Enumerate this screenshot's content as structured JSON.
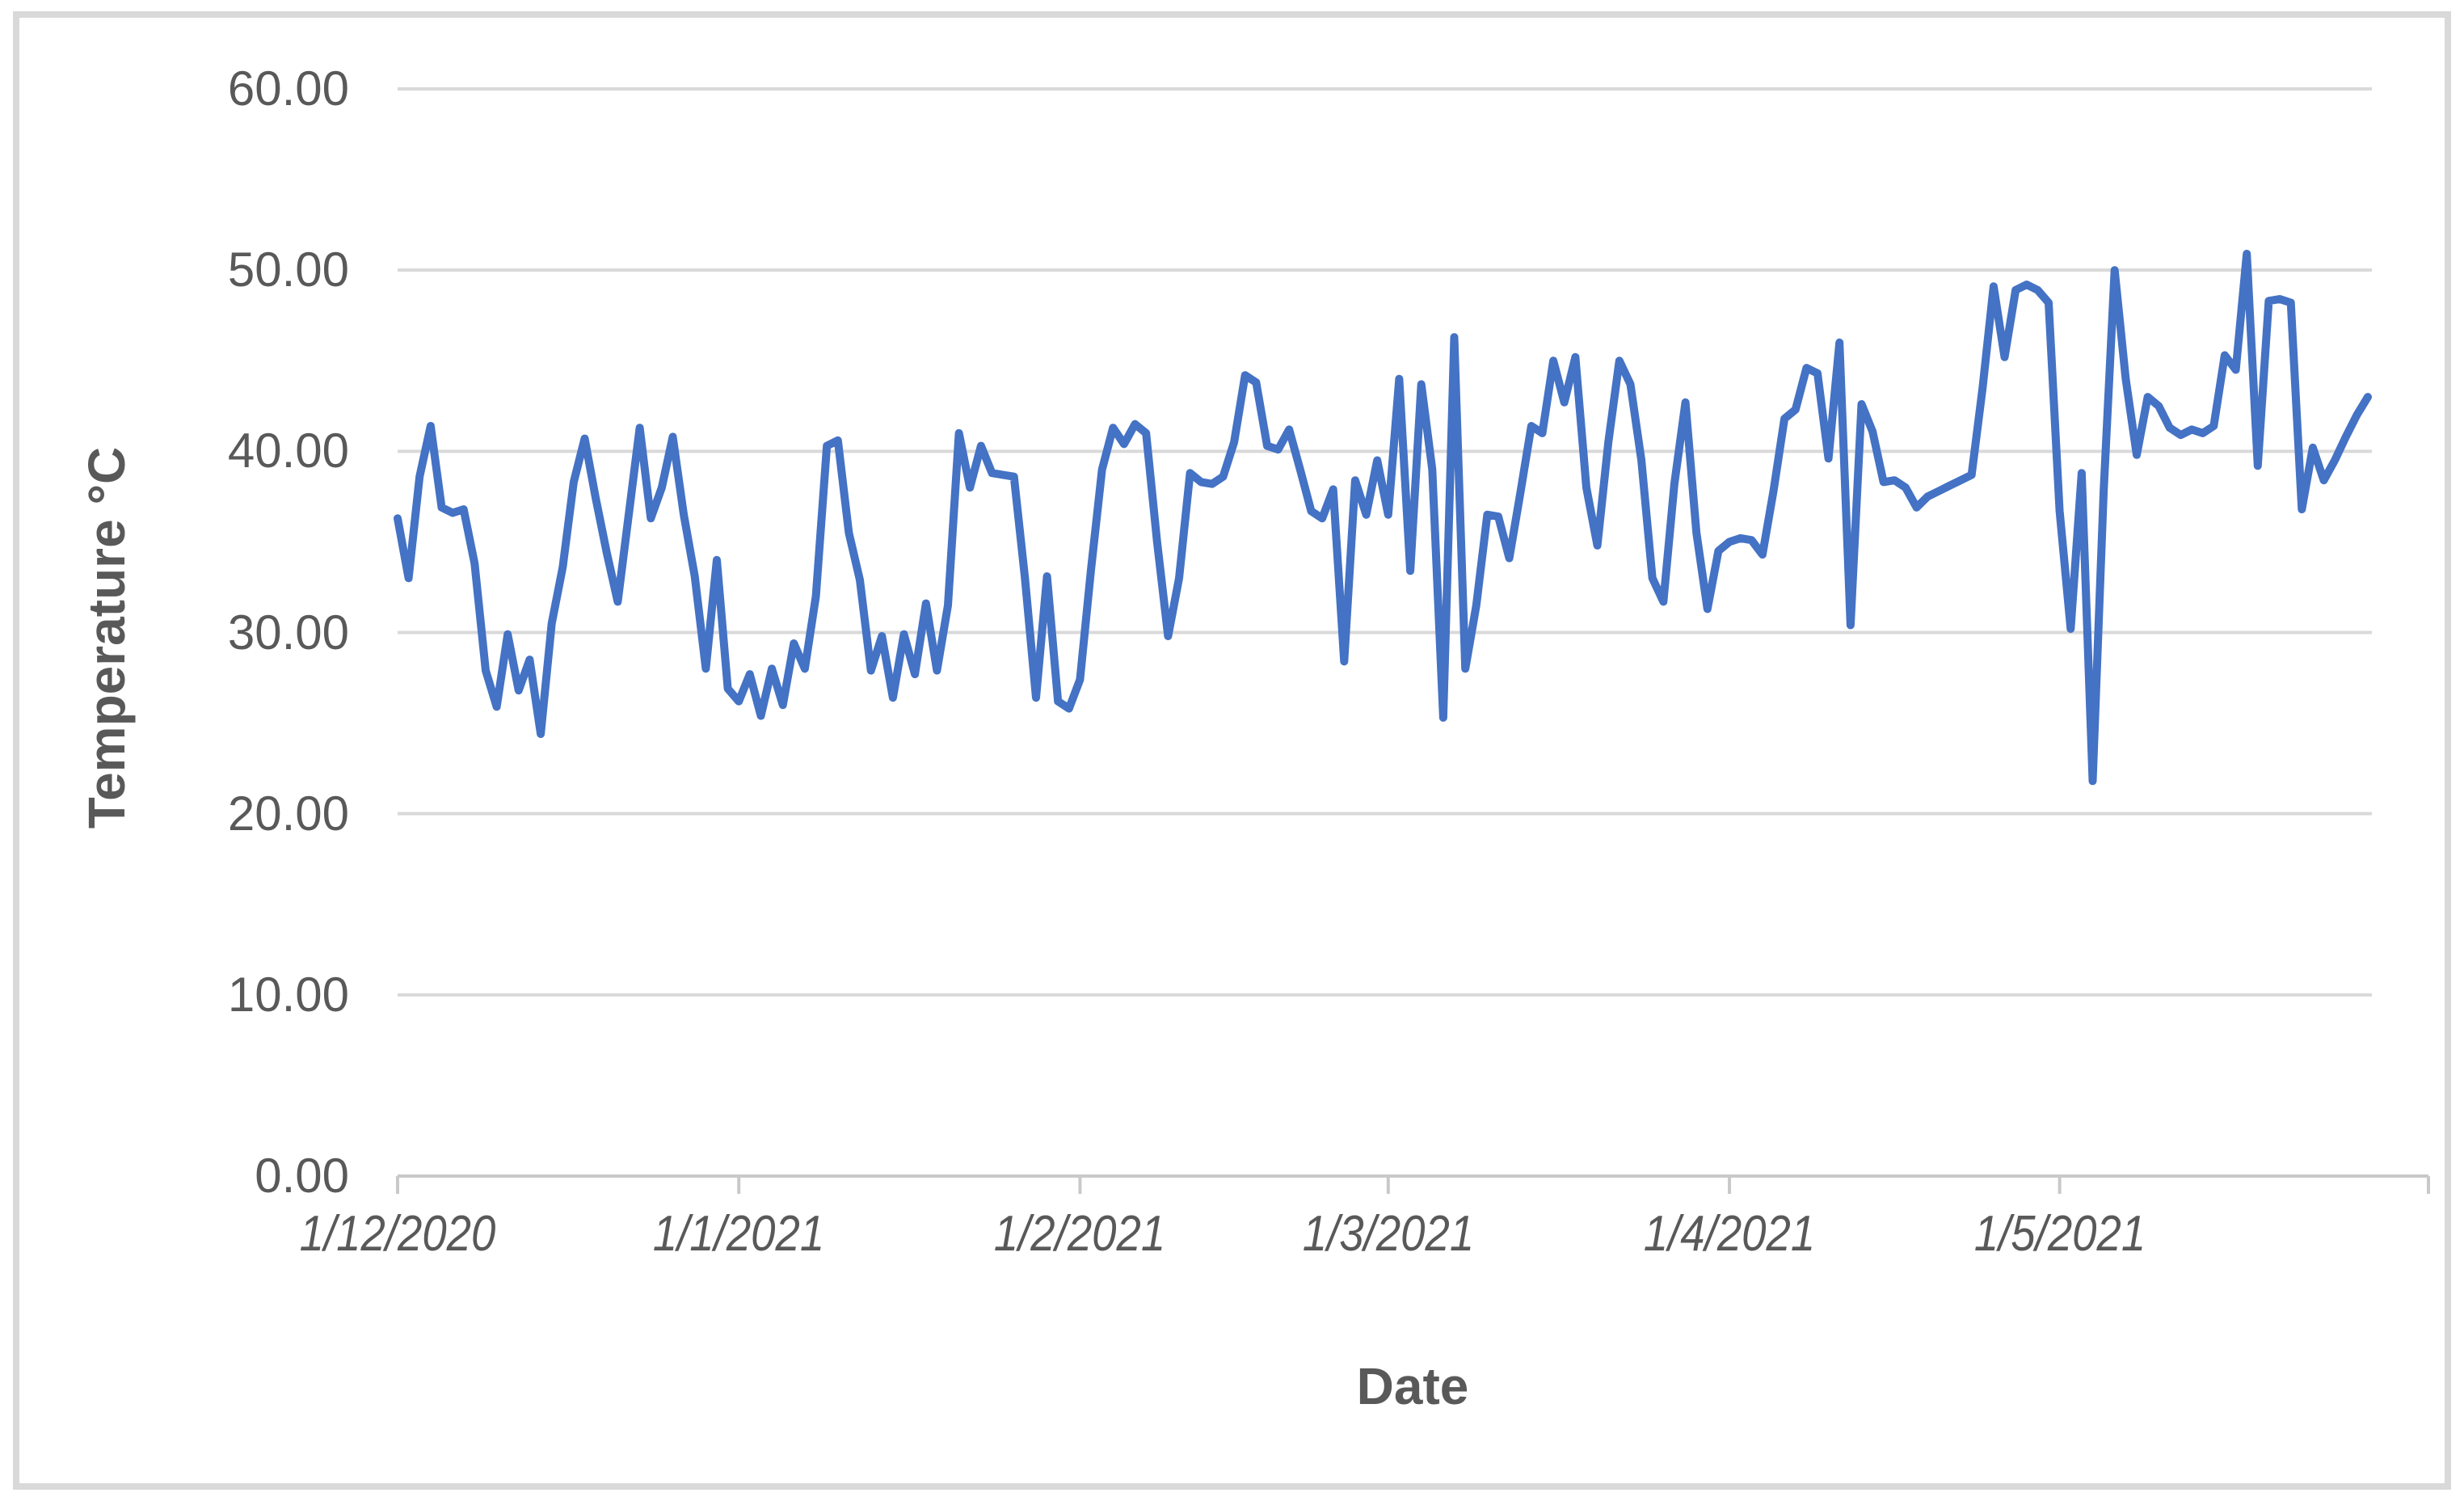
{
  "colors": {
    "series_line": "#4472C4",
    "gridline": "#d9d9d9",
    "axis_line": "#c9c9c9",
    "label_text": "#595959",
    "chart_border": "#d9d9d9",
    "background": "#ffffff"
  },
  "chart_data": {
    "type": "line",
    "title": "",
    "xlabel": "Date",
    "ylabel": "Temperature °C",
    "ylim": [
      0,
      60
    ],
    "grid": true,
    "legend": false,
    "y_tick_labels": [
      "0.00",
      "10.00",
      "20.00",
      "30.00",
      "40.00",
      "50.00",
      "60.00"
    ],
    "x_tick_labels": [
      "1/12/2020",
      "1/1/2021",
      "1/2/2021",
      "1/3/2021",
      "1/4/2021",
      "1/5/2021"
    ],
    "x_tick_day_offsets": [
      0,
      31,
      62,
      90,
      121,
      151
    ],
    "series": [
      {
        "name": "Temperature °C",
        "color": "#4472C4",
        "start_label": "1/12/2020",
        "frequency": "daily",
        "values": [
          36.3,
          33.0,
          38.6,
          41.4,
          36.9,
          36.6,
          36.8,
          33.8,
          27.9,
          25.9,
          29.9,
          26.8,
          28.5,
          24.4,
          30.5,
          33.6,
          38.3,
          40.7,
          37.4,
          34.4,
          31.7,
          36.5,
          41.3,
          36.3,
          38.0,
          40.8,
          36.5,
          33.1,
          28.0,
          34.0,
          26.9,
          26.2,
          27.7,
          25.4,
          28.0,
          26.0,
          29.4,
          28.0,
          32.0,
          40.3,
          40.6,
          35.5,
          32.9,
          27.9,
          29.8,
          26.4,
          29.9,
          27.7,
          31.6,
          27.9,
          31.5,
          41.0,
          38.0,
          40.3,
          38.8,
          38.7,
          38.6,
          33.0,
          26.4,
          33.1,
          26.2,
          25.8,
          27.4,
          33.5,
          39.0,
          41.3,
          40.4,
          41.5,
          41.0,
          35.0,
          29.8,
          33.0,
          38.8,
          38.3,
          38.2,
          38.6,
          40.5,
          44.2,
          43.8,
          40.3,
          40.1,
          41.2,
          39.0,
          36.7,
          36.3,
          37.9,
          28.4,
          38.4,
          36.5,
          39.5,
          36.5,
          44.0,
          33.4,
          43.7,
          39.0,
          25.3,
          46.3,
          28.0,
          31.5,
          36.5,
          36.4,
          34.1,
          37.7,
          41.4,
          41.0,
          45.0,
          42.7,
          45.2,
          38.0,
          34.8,
          40.5,
          45.0,
          43.7,
          39.5,
          33.0,
          31.7,
          38.2,
          42.7,
          35.5,
          31.3,
          34.5,
          35.0,
          35.2,
          35.1,
          34.3,
          37.8,
          41.8,
          42.3,
          44.6,
          44.3,
          39.6,
          46.0,
          30.4,
          42.6,
          41.1,
          38.3,
          38.4,
          38.0,
          36.9,
          37.5,
          37.8,
          38.1,
          38.4,
          38.7,
          43.5,
          49.1,
          45.2,
          48.9,
          49.2,
          48.9,
          48.2,
          36.7,
          30.2,
          38.8,
          21.8,
          37.8,
          50.0,
          44.0,
          39.8,
          43.0,
          42.5,
          41.3,
          40.9,
          41.2,
          41.0,
          41.4,
          45.3,
          44.5,
          50.9,
          39.2,
          48.3,
          48.4,
          48.2,
          36.8,
          40.2,
          38.4,
          39.5,
          40.8,
          42.0,
          43.0
        ]
      }
    ]
  }
}
